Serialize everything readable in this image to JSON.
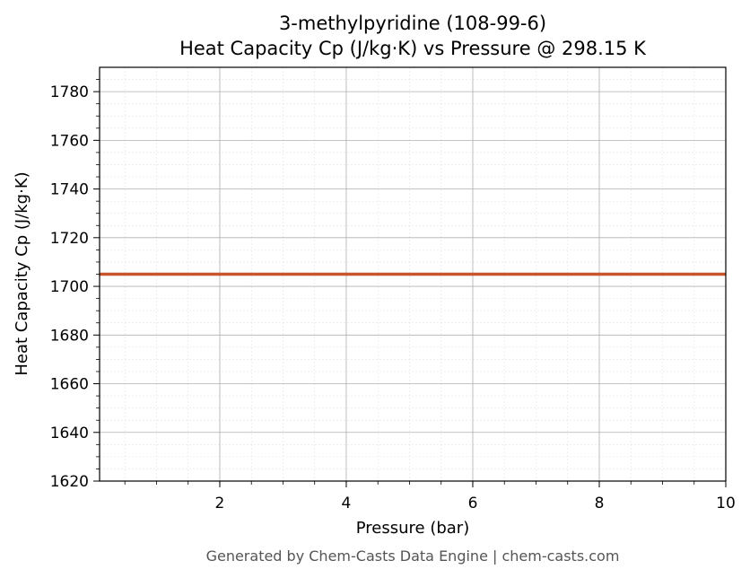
{
  "chart_data": {
    "type": "line",
    "title_line1": "3-methylpyridine (108-99-6)",
    "title_line2": "Heat Capacity Cp (J/kg·K) vs Pressure @ 298.15 K",
    "xlabel": "Pressure (bar)",
    "ylabel": "Heat Capacity Cp (J/kg·K)",
    "xlim": [
      0.1,
      10
    ],
    "ylim": [
      1620,
      1790
    ],
    "xticks": [
      2,
      4,
      6,
      8,
      10
    ],
    "yticks": [
      1620,
      1640,
      1660,
      1680,
      1700,
      1720,
      1740,
      1760,
      1780
    ],
    "grid": true,
    "series": [
      {
        "x": [
          0.1,
          1,
          2,
          3,
          4,
          5,
          6,
          7,
          8,
          9,
          10
        ],
        "y": [
          1705,
          1705,
          1705,
          1705,
          1705,
          1705,
          1705,
          1705,
          1705,
          1705,
          1705
        ],
        "color": "#c8552b"
      }
    ]
  },
  "footer": "Generated by Chem-Casts Data Engine | chem-casts.com"
}
